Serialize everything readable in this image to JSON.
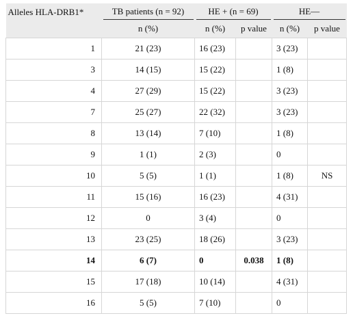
{
  "headers": {
    "alleles": "Alleles HLA-DRB1*",
    "tb_patients": "TB patients (n = 92)",
    "he_plus": "HE + (n = 69)",
    "he_minus": "HE—",
    "n_pct": "n (%)",
    "p_value": "p value"
  },
  "rows": [
    {
      "allele": "1",
      "tb": "21 (23)",
      "he_plus": "16 (23)",
      "p_plus": "",
      "he_minus": "3 (23)",
      "p_minus": "",
      "bold": false
    },
    {
      "allele": "3",
      "tb": "14 (15)",
      "he_plus": "15 (22)",
      "p_plus": "",
      "he_minus": "1 (8)",
      "p_minus": "",
      "bold": false
    },
    {
      "allele": "4",
      "tb": "27 (29)",
      "he_plus": "15 (22)",
      "p_plus": "",
      "he_minus": "3 (23)",
      "p_minus": "",
      "bold": false
    },
    {
      "allele": "7",
      "tb": "25 (27)",
      "he_plus": "22 (32)",
      "p_plus": "",
      "he_minus": "3 (23)",
      "p_minus": "",
      "bold": false
    },
    {
      "allele": "8",
      "tb": "13 (14)",
      "he_plus": "7 (10)",
      "p_plus": "",
      "he_minus": "1 (8)",
      "p_minus": "",
      "bold": false
    },
    {
      "allele": "9",
      "tb": "1 (1)",
      "he_plus": "2 (3)",
      "p_plus": "",
      "he_minus": "0",
      "p_minus": "",
      "bold": false
    },
    {
      "allele": "10",
      "tb": "5 (5)",
      "he_plus": "1 (1)",
      "p_plus": "",
      "he_minus": "1 (8)",
      "p_minus": "NS",
      "bold": false
    },
    {
      "allele": "11",
      "tb": "15 (16)",
      "he_plus": "16 (23)",
      "p_plus": "",
      "he_minus": "4 (31)",
      "p_minus": "",
      "bold": false
    },
    {
      "allele": "12",
      "tb": "0",
      "he_plus": "3 (4)",
      "p_plus": "",
      "he_minus": "0",
      "p_minus": "",
      "bold": false
    },
    {
      "allele": "13",
      "tb": "23 (25)",
      "he_plus": "18 (26)",
      "p_plus": "",
      "he_minus": "3 (23)",
      "p_minus": "",
      "bold": false
    },
    {
      "allele": "14",
      "tb": "6 (7)",
      "he_plus": "0",
      "p_plus": "0.038",
      "he_minus": "1 (8)",
      "p_minus": "",
      "bold": true
    },
    {
      "allele": "15",
      "tb": "17 (18)",
      "he_plus": "10 (14)",
      "p_plus": "",
      "he_minus": "4 (31)",
      "p_minus": "",
      "bold": false
    },
    {
      "allele": "16",
      "tb": "5 (5)",
      "he_plus": "7 (10)",
      "p_plus": "",
      "he_minus": "0",
      "p_minus": "",
      "bold": false
    }
  ]
}
